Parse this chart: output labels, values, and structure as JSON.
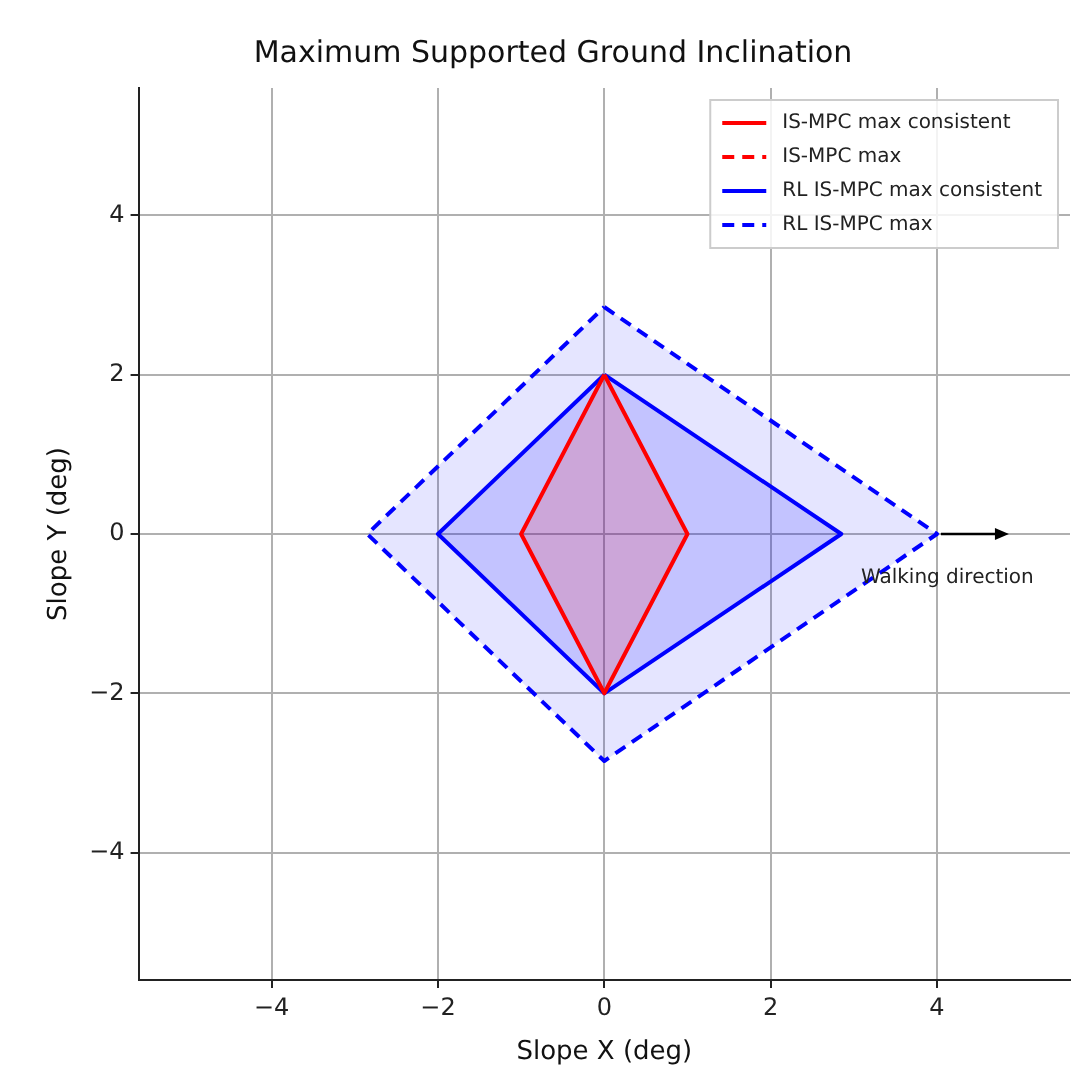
{
  "chart_data": {
    "type": "line",
    "title": "Maximum Supported Ground Inclination",
    "xlabel": "Slope X (deg)",
    "ylabel": "Slope Y (deg)",
    "xlim": [
      -5.6,
      5.6
    ],
    "ylim": [
      -5.6,
      5.6
    ],
    "xticks": [
      -4,
      -2,
      0,
      2,
      4
    ],
    "yticks": [
      -4,
      -2,
      0,
      2,
      4
    ],
    "grid": true,
    "legend": "top right",
    "marker": "none",
    "series": [
      {
        "name": "IS-MPC max consistent",
        "type": "area",
        "color": "#ff0000",
        "line_style": "solid",
        "x": [
          0,
          1,
          0,
          -1,
          0
        ],
        "values": [
          2,
          0,
          -2,
          0,
          2
        ]
      },
      {
        "name": "IS-MPC max",
        "color": "#ff0000",
        "line_style": "dashed"
      },
      {
        "name": "RL IS-MPC max consistent",
        "type": "area",
        "color": "#0000ff",
        "line_style": "solid",
        "x": [
          0,
          2.85,
          0,
          -2,
          0
        ],
        "values": [
          2,
          0,
          -2,
          0,
          2
        ]
      },
      {
        "name": "RL IS-MPC max",
        "type": "area",
        "color": "#0000ff",
        "line_style": "dashed",
        "x": [
          0,
          4,
          0,
          -2.85,
          0
        ],
        "values": [
          2.85,
          0,
          -2.85,
          0,
          2.85
        ]
      }
    ],
    "annotations": [
      {
        "text": "Walking direction",
        "x": 4,
        "y": 0
      }
    ]
  }
}
